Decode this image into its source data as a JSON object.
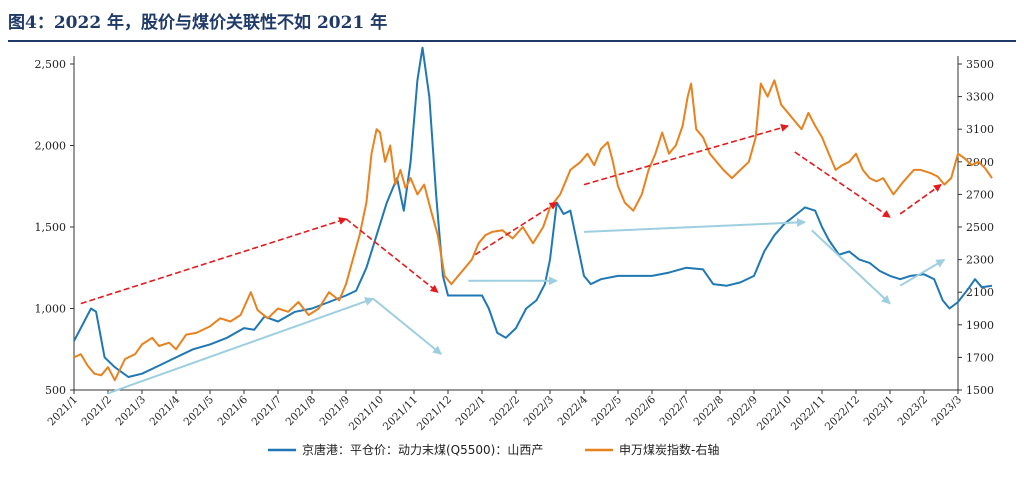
{
  "page": {
    "title": "图4：2022 年，股价与煤价关联性不如 2021 年"
  },
  "chart_data": {
    "type": "line",
    "title": "图4：2022 年，股价与煤价关联性不如 2021 年",
    "x_labels": [
      "2021/1",
      "2021/2",
      "2021/3",
      "2021/4",
      "2021/5",
      "2021/6",
      "2021/7",
      "2021/8",
      "2021/9",
      "2021/10",
      "2021/11",
      "2021/12",
      "2022/1",
      "2022/2",
      "2022/3",
      "2022/4",
      "2022/5",
      "2022/6",
      "2022/7",
      "2022/8",
      "2022/9",
      "2022/10",
      "2022/11",
      "2022/12",
      "2023/1",
      "2023/2",
      "2023/3"
    ],
    "y_left": {
      "range": [
        500,
        2500
      ],
      "ticks": [
        "500",
        "1,000",
        "1,500",
        "2,000",
        "2,500"
      ],
      "tick_values": [
        500,
        1000,
        1500,
        2000,
        2500
      ]
    },
    "y_right": {
      "range": [
        1500,
        3500
      ],
      "ticks": [
        "1500",
        "1700",
        "1900",
        "2100",
        "2300",
        "2500",
        "2700",
        "2900",
        "3100",
        "3300",
        "3500"
      ],
      "tick_values": [
        1500,
        1700,
        1900,
        2100,
        2300,
        2500,
        2700,
        2900,
        3100,
        3300,
        3500
      ]
    },
    "series": [
      {
        "name": "京唐港：平仓价：动力末煤(Q5500)：山西产",
        "axis": "left",
        "color": "#1f77b4",
        "points": [
          [
            0.0,
            800
          ],
          [
            0.25,
            900
          ],
          [
            0.5,
            1000
          ],
          [
            0.65,
            980
          ],
          [
            0.9,
            700
          ],
          [
            1.2,
            640
          ],
          [
            1.6,
            580
          ],
          [
            2.0,
            600
          ],
          [
            2.5,
            650
          ],
          [
            3.0,
            700
          ],
          [
            3.5,
            750
          ],
          [
            4.0,
            780
          ],
          [
            4.5,
            820
          ],
          [
            5.0,
            880
          ],
          [
            5.3,
            870
          ],
          [
            5.6,
            950
          ],
          [
            6.0,
            920
          ],
          [
            6.5,
            980
          ],
          [
            7.0,
            1000
          ],
          [
            7.5,
            1040
          ],
          [
            8.0,
            1080
          ],
          [
            8.3,
            1110
          ],
          [
            8.6,
            1250
          ],
          [
            8.9,
            1450
          ],
          [
            9.2,
            1650
          ],
          [
            9.5,
            1800
          ],
          [
            9.7,
            1600
          ],
          [
            9.9,
            1900
          ],
          [
            10.1,
            2400
          ],
          [
            10.25,
            2600
          ],
          [
            10.45,
            2300
          ],
          [
            10.65,
            1700
          ],
          [
            10.85,
            1200
          ],
          [
            11.0,
            1080
          ],
          [
            11.5,
            1080
          ],
          [
            12.0,
            1080
          ],
          [
            12.2,
            1000
          ],
          [
            12.45,
            850
          ],
          [
            12.7,
            820
          ],
          [
            13.0,
            880
          ],
          [
            13.3,
            1000
          ],
          [
            13.6,
            1050
          ],
          [
            13.85,
            1150
          ],
          [
            14.0,
            1300
          ],
          [
            14.2,
            1650
          ],
          [
            14.4,
            1580
          ],
          [
            14.6,
            1600
          ],
          [
            14.8,
            1400
          ],
          [
            15.0,
            1200
          ],
          [
            15.2,
            1150
          ],
          [
            15.5,
            1180
          ],
          [
            16.0,
            1200
          ],
          [
            16.5,
            1200
          ],
          [
            17.0,
            1200
          ],
          [
            17.5,
            1220
          ],
          [
            18.0,
            1250
          ],
          [
            18.5,
            1240
          ],
          [
            18.8,
            1150
          ],
          [
            19.2,
            1140
          ],
          [
            19.6,
            1160
          ],
          [
            20.0,
            1200
          ],
          [
            20.3,
            1350
          ],
          [
            20.6,
            1450
          ],
          [
            20.9,
            1520
          ],
          [
            21.2,
            1570
          ],
          [
            21.5,
            1620
          ],
          [
            21.8,
            1600
          ],
          [
            22.0,
            1500
          ],
          [
            22.2,
            1420
          ],
          [
            22.5,
            1330
          ],
          [
            22.8,
            1350
          ],
          [
            23.1,
            1300
          ],
          [
            23.4,
            1280
          ],
          [
            23.7,
            1230
          ],
          [
            24.0,
            1200
          ],
          [
            24.3,
            1180
          ],
          [
            24.6,
            1200
          ],
          [
            25.0,
            1210
          ],
          [
            25.3,
            1180
          ],
          [
            25.55,
            1050
          ],
          [
            25.75,
            1000
          ],
          [
            26.0,
            1040
          ],
          [
            26.3,
            1120
          ],
          [
            26.5,
            1180
          ],
          [
            26.7,
            1130
          ],
          [
            27.0,
            1140
          ]
        ]
      },
      {
        "name": "申万煤炭指数-右轴",
        "axis": "right",
        "color": "#e8821f",
        "points": [
          [
            0.0,
            1700
          ],
          [
            0.2,
            1720
          ],
          [
            0.4,
            1650
          ],
          [
            0.6,
            1600
          ],
          [
            0.8,
            1590
          ],
          [
            1.0,
            1640
          ],
          [
            1.2,
            1560
          ],
          [
            1.5,
            1690
          ],
          [
            1.8,
            1720
          ],
          [
            2.0,
            1780
          ],
          [
            2.3,
            1820
          ],
          [
            2.5,
            1770
          ],
          [
            2.8,
            1790
          ],
          [
            3.0,
            1750
          ],
          [
            3.3,
            1840
          ],
          [
            3.6,
            1850
          ],
          [
            4.0,
            1890
          ],
          [
            4.3,
            1940
          ],
          [
            4.6,
            1920
          ],
          [
            4.9,
            1960
          ],
          [
            5.2,
            2100
          ],
          [
            5.4,
            1990
          ],
          [
            5.7,
            1940
          ],
          [
            6.0,
            2000
          ],
          [
            6.3,
            1980
          ],
          [
            6.6,
            2040
          ],
          [
            6.9,
            1960
          ],
          [
            7.2,
            2000
          ],
          [
            7.5,
            2100
          ],
          [
            7.8,
            2050
          ],
          [
            8.0,
            2150
          ],
          [
            8.2,
            2300
          ],
          [
            8.4,
            2450
          ],
          [
            8.6,
            2650
          ],
          [
            8.75,
            2950
          ],
          [
            8.9,
            3100
          ],
          [
            9.0,
            3080
          ],
          [
            9.15,
            2900
          ],
          [
            9.3,
            3000
          ],
          [
            9.45,
            2760
          ],
          [
            9.6,
            2850
          ],
          [
            9.75,
            2740
          ],
          [
            9.9,
            2800
          ],
          [
            10.1,
            2700
          ],
          [
            10.3,
            2760
          ],
          [
            10.5,
            2600
          ],
          [
            10.7,
            2450
          ],
          [
            10.9,
            2200
          ],
          [
            11.1,
            2150
          ],
          [
            11.3,
            2200
          ],
          [
            11.5,
            2250
          ],
          [
            11.7,
            2300
          ],
          [
            11.9,
            2400
          ],
          [
            12.1,
            2450
          ],
          [
            12.3,
            2470
          ],
          [
            12.6,
            2480
          ],
          [
            12.9,
            2430
          ],
          [
            13.2,
            2500
          ],
          [
            13.5,
            2400
          ],
          [
            13.8,
            2500
          ],
          [
            14.0,
            2620
          ],
          [
            14.3,
            2700
          ],
          [
            14.6,
            2850
          ],
          [
            14.9,
            2900
          ],
          [
            15.1,
            2950
          ],
          [
            15.3,
            2880
          ],
          [
            15.5,
            2980
          ],
          [
            15.7,
            3020
          ],
          [
            15.85,
            2900
          ],
          [
            16.0,
            2750
          ],
          [
            16.2,
            2650
          ],
          [
            16.45,
            2600
          ],
          [
            16.7,
            2700
          ],
          [
            16.9,
            2850
          ],
          [
            17.1,
            2950
          ],
          [
            17.3,
            3080
          ],
          [
            17.5,
            2950
          ],
          [
            17.7,
            3000
          ],
          [
            17.9,
            3120
          ],
          [
            18.05,
            3300
          ],
          [
            18.15,
            3380
          ],
          [
            18.3,
            3100
          ],
          [
            18.5,
            3050
          ],
          [
            18.7,
            2950
          ],
          [
            18.9,
            2900
          ],
          [
            19.1,
            2850
          ],
          [
            19.35,
            2800
          ],
          [
            19.6,
            2850
          ],
          [
            19.85,
            2900
          ],
          [
            20.05,
            3050
          ],
          [
            20.2,
            3380
          ],
          [
            20.4,
            3300
          ],
          [
            20.6,
            3400
          ],
          [
            20.8,
            3250
          ],
          [
            21.0,
            3200
          ],
          [
            21.2,
            3150
          ],
          [
            21.4,
            3100
          ],
          [
            21.6,
            3200
          ],
          [
            21.8,
            3120
          ],
          [
            22.0,
            3050
          ],
          [
            22.2,
            2950
          ],
          [
            22.4,
            2850
          ],
          [
            22.6,
            2880
          ],
          [
            22.8,
            2900
          ],
          [
            23.0,
            2950
          ],
          [
            23.2,
            2850
          ],
          [
            23.4,
            2800
          ],
          [
            23.6,
            2780
          ],
          [
            23.8,
            2800
          ],
          [
            24.1,
            2700
          ],
          [
            24.4,
            2780
          ],
          [
            24.7,
            2850
          ],
          [
            24.9,
            2850
          ],
          [
            25.2,
            2830
          ],
          [
            25.4,
            2810
          ],
          [
            25.6,
            2760
          ],
          [
            25.8,
            2800
          ],
          [
            26.0,
            2950
          ],
          [
            26.2,
            2920
          ],
          [
            26.4,
            2880
          ],
          [
            26.6,
            2900
          ],
          [
            26.8,
            2860
          ],
          [
            27.0,
            2800
          ]
        ]
      }
    ],
    "annotations": {
      "red_arrows": [
        {
          "from": [
            0.2,
            1030
          ],
          "to": [
            8.0,
            1550
          ]
        },
        {
          "from": [
            8.0,
            1550
          ],
          "to": [
            10.7,
            1100
          ]
        },
        {
          "from": [
            11.8,
            1330
          ],
          "to": [
            14.2,
            1650
          ]
        },
        {
          "from": [
            15.0,
            1760
          ],
          "to": [
            21.0,
            2120
          ]
        },
        {
          "from": [
            21.2,
            1960
          ],
          "to": [
            24.0,
            1560
          ]
        },
        {
          "from": [
            24.3,
            1580
          ],
          "to": [
            25.5,
            1760
          ]
        }
      ],
      "blue_arrows": [
        {
          "from": [
            1.0,
            480
          ],
          "to": [
            8.8,
            1060
          ]
        },
        {
          "from": [
            8.8,
            1060
          ],
          "to": [
            10.8,
            720
          ]
        },
        {
          "from": [
            11.6,
            1170
          ],
          "to": [
            14.2,
            1170
          ]
        },
        {
          "from": [
            15.0,
            1470
          ],
          "to": [
            21.5,
            1530
          ]
        },
        {
          "from": [
            21.7,
            1480
          ],
          "to": [
            24.0,
            1030
          ]
        },
        {
          "from": [
            24.3,
            1140
          ],
          "to": [
            25.6,
            1300
          ]
        }
      ]
    },
    "legend": {
      "position": "bottom"
    }
  }
}
